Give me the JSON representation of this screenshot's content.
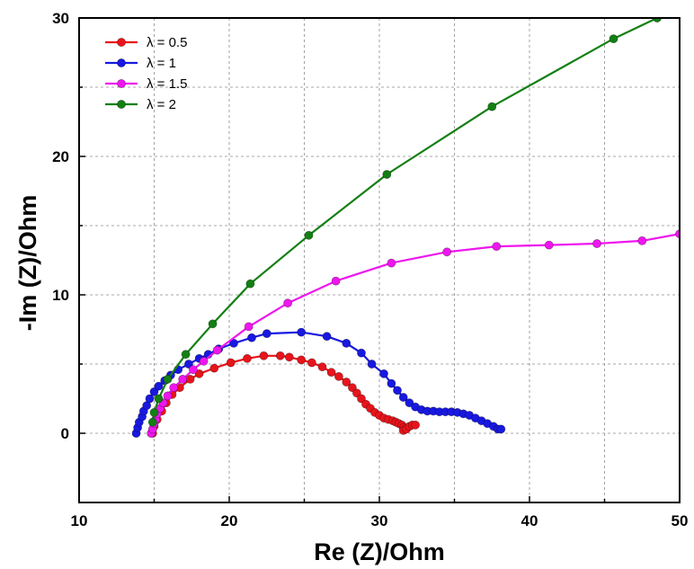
{
  "chart_data": {
    "type": "line",
    "xlabel": "Re (Z)/Ohm",
    "ylabel": "-Im (Z)/Ohm",
    "xlim": [
      10,
      50
    ],
    "ylim": [
      -5,
      30
    ],
    "xticks": [
      10,
      20,
      30,
      40,
      50
    ],
    "yticks": [
      0,
      10,
      20,
      30
    ],
    "grid": "dashed",
    "legend_position": "top-left",
    "series": [
      {
        "name": "λ = 0.5",
        "color": "#e8141b",
        "points": [
          [
            14.9,
            0.0
          ],
          [
            15.0,
            0.5
          ],
          [
            15.2,
            1.0
          ],
          [
            15.5,
            1.6
          ],
          [
            15.8,
            2.2
          ],
          [
            16.2,
            2.8
          ],
          [
            16.7,
            3.3
          ],
          [
            17.4,
            3.9
          ],
          [
            18.0,
            4.3
          ],
          [
            19.0,
            4.7
          ],
          [
            20.1,
            5.1
          ],
          [
            21.2,
            5.4
          ],
          [
            22.3,
            5.6
          ],
          [
            23.4,
            5.6
          ],
          [
            24.0,
            5.5
          ],
          [
            24.8,
            5.3
          ],
          [
            25.5,
            5.1
          ],
          [
            26.2,
            4.8
          ],
          [
            26.8,
            4.4
          ],
          [
            27.3,
            4.1
          ],
          [
            27.8,
            3.7
          ],
          [
            28.2,
            3.3
          ],
          [
            28.5,
            2.9
          ],
          [
            28.8,
            2.5
          ],
          [
            29.1,
            2.1
          ],
          [
            29.4,
            1.8
          ],
          [
            29.7,
            1.5
          ],
          [
            30.0,
            1.3
          ],
          [
            30.3,
            1.1
          ],
          [
            30.6,
            1.0
          ],
          [
            30.9,
            0.9
          ],
          [
            31.1,
            0.8
          ],
          [
            31.3,
            0.7
          ],
          [
            31.5,
            0.6
          ],
          [
            31.6,
            0.4
          ],
          [
            31.6,
            0.2
          ],
          [
            31.8,
            0.3
          ],
          [
            32.0,
            0.5
          ],
          [
            32.2,
            0.6
          ],
          [
            32.4,
            0.6
          ]
        ]
      },
      {
        "name": "λ = 1",
        "color": "#1818e0",
        "points": [
          [
            13.8,
            0.0
          ],
          [
            13.9,
            0.4
          ],
          [
            14.0,
            0.8
          ],
          [
            14.2,
            1.2
          ],
          [
            14.3,
            1.6
          ],
          [
            14.5,
            2.0
          ],
          [
            14.7,
            2.5
          ],
          [
            15.0,
            3.0
          ],
          [
            15.3,
            3.4
          ],
          [
            15.7,
            3.8
          ],
          [
            16.1,
            4.2
          ],
          [
            16.6,
            4.6
          ],
          [
            17.3,
            5.0
          ],
          [
            18.0,
            5.4
          ],
          [
            18.6,
            5.7
          ],
          [
            19.3,
            6.1
          ],
          [
            20.3,
            6.5
          ],
          [
            21.5,
            6.9
          ],
          [
            22.5,
            7.2
          ],
          [
            24.8,
            7.3
          ],
          [
            26.5,
            7.0
          ],
          [
            27.8,
            6.5
          ],
          [
            28.8,
            5.8
          ],
          [
            29.5,
            5.0
          ],
          [
            30.3,
            4.3
          ],
          [
            30.8,
            3.6
          ],
          [
            31.2,
            3.1
          ],
          [
            31.6,
            2.6
          ],
          [
            32.0,
            2.2
          ],
          [
            32.4,
            1.9
          ],
          [
            32.8,
            1.7
          ],
          [
            33.2,
            1.6
          ],
          [
            33.6,
            1.6
          ],
          [
            34.0,
            1.55
          ],
          [
            34.4,
            1.55
          ],
          [
            34.8,
            1.55
          ],
          [
            35.2,
            1.5
          ],
          [
            35.6,
            1.4
          ],
          [
            36.0,
            1.3
          ],
          [
            36.4,
            1.1
          ],
          [
            36.8,
            0.9
          ],
          [
            37.2,
            0.7
          ],
          [
            37.6,
            0.5
          ],
          [
            37.9,
            0.3
          ],
          [
            38.1,
            0.3
          ]
        ]
      },
      {
        "name": "λ = 1.5",
        "color": "#ee16ee",
        "points": [
          [
            14.8,
            0.0
          ],
          [
            14.9,
            0.3
          ],
          [
            15.0,
            0.7
          ],
          [
            15.1,
            1.0
          ],
          [
            15.2,
            1.4
          ],
          [
            15.4,
            1.8
          ],
          [
            15.6,
            2.2
          ],
          [
            15.9,
            2.7
          ],
          [
            16.3,
            3.3
          ],
          [
            16.9,
            3.9
          ],
          [
            17.6,
            4.6
          ],
          [
            18.3,
            5.2
          ],
          [
            19.2,
            6.0
          ],
          [
            21.3,
            7.7
          ],
          [
            23.9,
            9.4
          ],
          [
            27.1,
            11.0
          ],
          [
            30.8,
            12.3
          ],
          [
            34.5,
            13.1
          ],
          [
            37.8,
            13.5
          ],
          [
            41.3,
            13.6
          ],
          [
            44.5,
            13.7
          ],
          [
            47.5,
            13.9
          ],
          [
            50.0,
            14.4
          ]
        ]
      },
      {
        "name": "λ = 2",
        "color": "#137f13",
        "points": [
          [
            14.9,
            0.8
          ],
          [
            15.0,
            1.5
          ],
          [
            15.3,
            2.5
          ],
          [
            15.9,
            3.9
          ],
          [
            17.1,
            5.7
          ],
          [
            18.9,
            7.9
          ],
          [
            21.4,
            10.8
          ],
          [
            25.3,
            14.3
          ],
          [
            30.5,
            18.7
          ],
          [
            37.5,
            23.6
          ],
          [
            45.6,
            28.5
          ],
          [
            48.5,
            30.0
          ]
        ]
      }
    ]
  }
}
